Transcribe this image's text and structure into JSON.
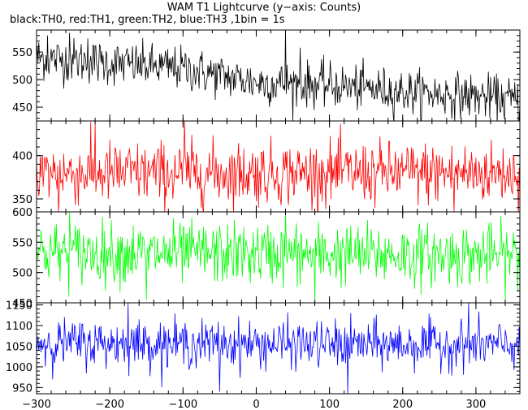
{
  "chart_data": {
    "type": "line",
    "title": "WAM T1 Lightcurve (y−axis: Counts)",
    "subtitle": "black:TH0, red:TH1, green:TH2, blue:TH3 ,1bin = 1s",
    "xlim": [
      -300,
      360
    ],
    "x_ticks": [
      -300,
      -200,
      -100,
      0,
      100,
      200,
      300
    ],
    "x_tick_labels": [
      "−300",
      "−200",
      "−100",
      "0",
      "100",
      "200",
      "300"
    ],
    "grid": false,
    "bin_seconds": 1,
    "series": [
      {
        "name": "TH0",
        "color": "#000000",
        "ylim": [
          425,
          590
        ],
        "y_ticks": [
          450,
          500,
          550
        ],
        "trend": [
          [
            -300,
            540
          ],
          [
            -200,
            530
          ],
          [
            -100,
            520
          ],
          [
            0,
            495
          ],
          [
            100,
            490
          ],
          [
            200,
            478
          ],
          [
            300,
            470
          ],
          [
            360,
            462
          ]
        ],
        "noise_sd": 20,
        "spikes": [
          [
            -285,
            580
          ],
          [
            -255,
            585
          ],
          [
            -230,
            575
          ],
          [
            40,
            595
          ],
          [
            60,
            558
          ]
        ]
      },
      {
        "name": "TH1",
        "color": "#ff0000",
        "ylim": [
          335,
          440
        ],
        "y_ticks": [
          350,
          400
        ],
        "trend": [
          [
            -300,
            380
          ],
          [
            360,
            380
          ]
        ],
        "noise_sd": 18,
        "spikes": [
          [
            -220,
            440
          ],
          [
            -98,
            442
          ],
          [
            -270,
            335
          ],
          [
            270,
            335
          ]
        ]
      },
      {
        "name": "TH2",
        "color": "#00ff00",
        "ylim": [
          450,
          600
        ],
        "y_ticks": [
          450,
          500,
          550,
          600
        ],
        "trend": [
          [
            -300,
            533
          ],
          [
            360,
            528
          ]
        ],
        "noise_sd": 25,
        "spikes": [
          [
            -255,
            600
          ],
          [
            40,
            598
          ],
          [
            -150,
            455
          ],
          [
            80,
            450
          ]
        ]
      },
      {
        "name": "TH3",
        "color": "#0000ff",
        "ylim": [
          935,
          1155
        ],
        "y_ticks": [
          950,
          1000,
          1050,
          1100,
          1150
        ],
        "trend": [
          [
            -300,
            1058
          ],
          [
            360,
            1052
          ]
        ],
        "noise_sd": 28,
        "spikes": [
          [
            -175,
            1155
          ],
          [
            290,
            1155
          ],
          [
            -50,
            940
          ],
          [
            125,
            935
          ]
        ]
      }
    ]
  }
}
